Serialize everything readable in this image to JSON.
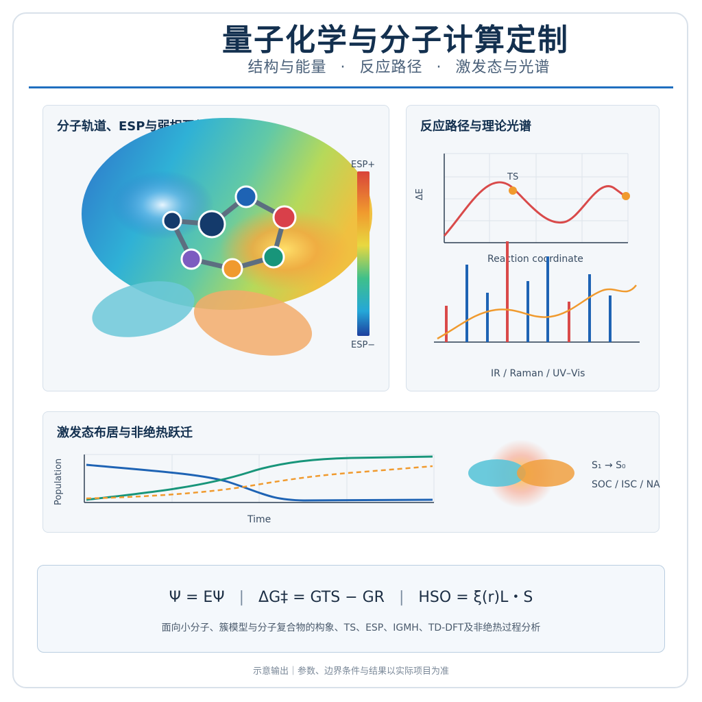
{
  "header": {
    "title": "量子化学与分子计算定制",
    "subtitle_parts": [
      "结构与能量",
      "反应路径",
      "激发态与光谱"
    ],
    "separator": "·"
  },
  "panel_orbital": {
    "title": "分子轨道、ESP与弱相互作用",
    "colorbar_top": "ESP+",
    "colorbar_bottom": "ESP−"
  },
  "panel_reaction": {
    "title": "反应路径与理论光谱",
    "y_label": "ΔE",
    "ts_label": "TS",
    "x_label": "Reaction coordinate",
    "spectrum_label": "IR / Raman / UV–Vis"
  },
  "panel_excited": {
    "title": "激发态布居与非绝热跃迁",
    "y_label": "Population",
    "x_label": "Time",
    "transition": "S₁ → S₀",
    "processes": "SOC / ISC / NAC"
  },
  "formula": {
    "eq1": "Ψ = EΨ",
    "eq2": "ΔG‡ = GTS − GR",
    "eq3": "HSO = ξ(r)L・S",
    "divider": "|",
    "description": "面向小分子、簇模型与分子复合物的构象、TS、ESP、IGMH、TD-DFT及非绝热过程分析"
  },
  "footer": {
    "note": "示意输出｜参数、边界条件与结果以实际项目为准"
  },
  "colors": {
    "accent": "#1f6fbf",
    "red": "#d94a4a",
    "blue": "#1e63b4",
    "green": "#18957a",
    "orange": "#f09a2e",
    "purple": "#7c5cc0",
    "navy": "#143a6b"
  }
}
